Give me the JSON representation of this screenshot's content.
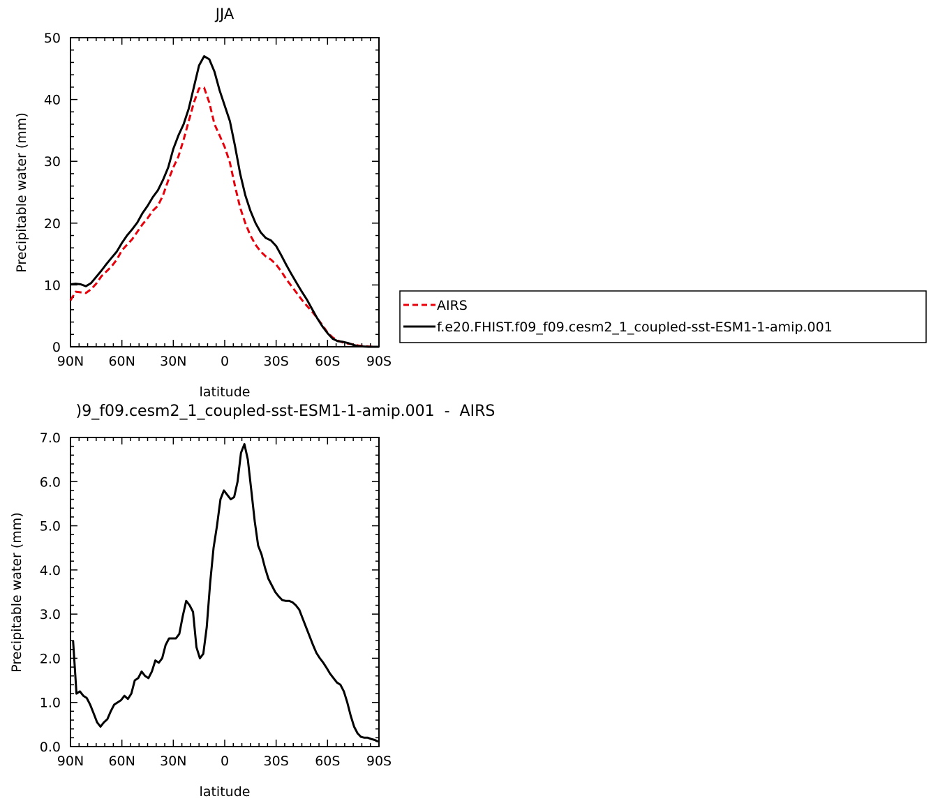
{
  "chart_data": [
    {
      "type": "line",
      "title": "JJA",
      "xlabel": "latitude",
      "ylabel": "Precipitable water (mm)",
      "ylim": [
        0,
        50
      ],
      "xlim": [
        90,
        -90
      ],
      "x_ticks": [
        90,
        60,
        30,
        0,
        -30,
        -60,
        -90
      ],
      "x_tick_labels": [
        "90N",
        "60N",
        "30N",
        "0",
        "30S",
        "60S",
        "90S"
      ],
      "y_ticks": [
        0,
        10,
        20,
        30,
        40,
        50
      ],
      "y_tick_labels": [
        "0",
        "10",
        "20",
        "30",
        "40",
        "50"
      ],
      "legend": {
        "placement": "right",
        "entries": [
          "AIRS",
          "f.e20.FHIST.f09_f09.cesm2_1_coupled-sst-ESM1-1-amip.001"
        ]
      },
      "series": [
        {
          "name": "AIRS",
          "color": "#e8000b",
          "dash": "dashed",
          "x": [
            90,
            87,
            84,
            81,
            78,
            75,
            72,
            69,
            66,
            63,
            60,
            57,
            54,
            51,
            48,
            45,
            42,
            39,
            36,
            33,
            30,
            27,
            24,
            21,
            18,
            15,
            12,
            9,
            6,
            3,
            0,
            -3,
            -6,
            -9,
            -12,
            -15,
            -18,
            -21,
            -24,
            -27,
            -30,
            -33,
            -36,
            -39,
            -42,
            -45,
            -48,
            -51,
            -54,
            -57,
            -60,
            -63,
            -66,
            -69,
            -72,
            -75,
            -78,
            -81,
            -84,
            -87,
            -90
          ],
          "y": [
            7.5,
            8.9,
            8.8,
            8.7,
            9.3,
            10.2,
            11.4,
            12.2,
            13.0,
            14.1,
            15.6,
            16.5,
            17.4,
            18.6,
            19.8,
            20.8,
            22.0,
            22.8,
            24.5,
            26.9,
            29.0,
            30.8,
            33.5,
            36.5,
            39.5,
            41.8,
            41.9,
            39.5,
            36.0,
            34.2,
            32.3,
            29.8,
            26.0,
            22.5,
            20.0,
            18.0,
            16.5,
            15.4,
            14.6,
            14.1,
            13.3,
            12.2,
            10.9,
            9.8,
            8.7,
            7.6,
            6.6,
            5.7,
            4.6,
            3.5,
            2.3,
            1.5,
            1.0,
            0.7,
            0.5,
            0.4,
            0.2,
            0.1,
            0.05,
            0.0,
            0.0
          ]
        },
        {
          "name": "f.e20.FHIST.f09_f09.cesm2_1_coupled-sst-ESM1-1-amip.001",
          "color": "#000000",
          "dash": "solid",
          "x": [
            90,
            87,
            84,
            81,
            78,
            75,
            72,
            69,
            66,
            63,
            60,
            57,
            54,
            51,
            48,
            45,
            42,
            39,
            36,
            33,
            30,
            27,
            24,
            21,
            18,
            15,
            12,
            9,
            6,
            3,
            0,
            -3,
            -6,
            -9,
            -12,
            -15,
            -18,
            -21,
            -24,
            -27,
            -30,
            -33,
            -36,
            -39,
            -42,
            -45,
            -48,
            -51,
            -54,
            -57,
            -60,
            -63,
            -66,
            -69,
            -72,
            -75,
            -78,
            -81,
            -84,
            -87,
            -90
          ],
          "y": [
            10.1,
            10.2,
            10.1,
            9.8,
            10.3,
            11.3,
            12.3,
            13.4,
            14.4,
            15.4,
            16.8,
            18.0,
            19.0,
            20.1,
            21.6,
            22.8,
            24.2,
            25.3,
            27.0,
            29.0,
            32.0,
            34.2,
            36.0,
            38.5,
            42.0,
            45.5,
            47.0,
            46.5,
            44.5,
            41.5,
            39.0,
            36.5,
            32.5,
            28.0,
            24.5,
            22.0,
            20.0,
            18.5,
            17.6,
            17.2,
            16.3,
            14.8,
            13.2,
            11.7,
            10.3,
            8.9,
            7.6,
            6.1,
            4.6,
            3.3,
            2.2,
            1.3,
            0.9,
            0.8,
            0.6,
            0.3,
            0.1,
            0.05,
            0.0,
            0.0,
            0.0
          ]
        }
      ]
    },
    {
      "type": "line",
      "title": ")9_f09.cesm2_1_coupled-sst-ESM1-1-amip.001  -  AIRS",
      "xlabel": "latitude",
      "ylabel": "Precipitable water (mm)",
      "ylim": [
        0,
        7
      ],
      "xlim": [
        90,
        -90
      ],
      "x_ticks": [
        90,
        60,
        30,
        0,
        -30,
        -60,
        -90
      ],
      "x_tick_labels": [
        "90N",
        "60N",
        "30N",
        "0",
        "30S",
        "60S",
        "90S"
      ],
      "y_ticks": [
        0,
        1,
        2,
        3,
        4,
        5,
        6,
        7
      ],
      "y_tick_labels": [
        "0.0",
        "1.0",
        "2.0",
        "3.0",
        "4.0",
        "5.0",
        "6.0",
        "7.0"
      ],
      "series": [
        {
          "color": "#000000",
          "dash": "solid",
          "x": [
            88.5,
            86.5,
            84.5,
            82.5,
            80.5,
            78.5,
            76.5,
            74.5,
            72.5,
            70.5,
            68.5,
            66.5,
            64.5,
            62.5,
            60.5,
            58.5,
            56.5,
            54.5,
            52.5,
            50.5,
            48.5,
            46.5,
            44.5,
            42.5,
            40.5,
            38.5,
            36.5,
            34.5,
            32.5,
            30.5,
            28.5,
            26.5,
            24.5,
            22.5,
            20.5,
            18.5,
            16.5,
            14.5,
            12.5,
            10.5,
            8.5,
            6.5,
            4.5,
            2.5,
            0.5,
            -1.5,
            -3.5,
            -5.5,
            -7.5,
            -9.5,
            -11.5,
            -13.5,
            -15.5,
            -17.5,
            -19.5,
            -21.5,
            -23.5,
            -25.5,
            -27.5,
            -29.5,
            -31.5,
            -33.5,
            -35.5,
            -37.5,
            -39.5,
            -41.5,
            -43.5,
            -45.5,
            -47.5,
            -49.5,
            -51.5,
            -53.5,
            -55.5,
            -57.5,
            -59.5,
            -61.5,
            -63.5,
            -65.5,
            -67.5,
            -69.5,
            -71.5,
            -73.5,
            -75.5,
            -77.5,
            -79.5,
            -81.5,
            -83.5,
            -85.5,
            -87.5,
            -89.5
          ],
          "y": [
            2.4,
            1.2,
            1.25,
            1.15,
            1.1,
            0.95,
            0.75,
            0.55,
            0.45,
            0.55,
            0.62,
            0.8,
            0.95,
            1.0,
            1.05,
            1.15,
            1.08,
            1.2,
            1.5,
            1.55,
            1.7,
            1.6,
            1.55,
            1.7,
            1.95,
            1.9,
            2.0,
            2.3,
            2.45,
            2.45,
            2.45,
            2.55,
            2.95,
            3.3,
            3.2,
            3.05,
            2.25,
            2.0,
            2.1,
            2.7,
            3.7,
            4.5,
            5.0,
            5.6,
            5.8,
            5.7,
            5.6,
            5.65,
            6.0,
            6.65,
            6.85,
            6.5,
            5.8,
            5.1,
            4.55,
            4.35,
            4.05,
            3.8,
            3.65,
            3.5,
            3.4,
            3.32,
            3.3,
            3.3,
            3.27,
            3.2,
            3.1,
            2.9,
            2.7,
            2.5,
            2.3,
            2.12,
            2.0,
            1.9,
            1.78,
            1.65,
            1.55,
            1.45,
            1.4,
            1.25,
            1.0,
            0.7,
            0.45,
            0.3,
            0.22,
            0.2,
            0.2,
            0.17,
            0.15,
            0.11
          ]
        }
      ]
    }
  ]
}
